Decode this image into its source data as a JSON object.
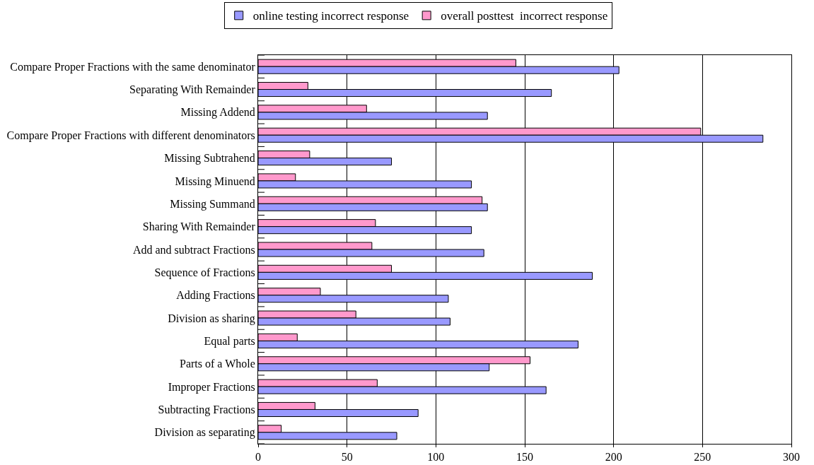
{
  "chart_data": {
    "type": "bar",
    "orientation": "horizontal",
    "categories": [
      "Compare Proper Fractions with the same denominator",
      "Separating With Remainder",
      "Missing Addend",
      "Compare Proper Fractions with different denominators",
      "Missing Subtrahend",
      "Missing Minuend",
      "Missing Summand",
      "Sharing With Remainder",
      "Add and subtract Fractions",
      "Sequence of Fractions",
      "Adding Fractions",
      "Division as sharing",
      "Equal parts",
      "Parts of a Whole",
      "Improper Fractions",
      "Subtracting Fractions",
      "Division as separating"
    ],
    "series": [
      {
        "name": "online testing incorrect response",
        "color": "#9999ff",
        "values": [
          203,
          165,
          129,
          284,
          75,
          120,
          129,
          120,
          127,
          188,
          107,
          108,
          180,
          130,
          162,
          90,
          78
        ]
      },
      {
        "name": "overall posttest  incorrect response",
        "color": "#ff99cc",
        "values": [
          145,
          28,
          61,
          249,
          29,
          21,
          126,
          66,
          64,
          75,
          35,
          55,
          22,
          153,
          67,
          32,
          13
        ]
      }
    ],
    "xlim": [
      0,
      300
    ],
    "xticks": [
      0,
      50,
      100,
      150,
      200,
      250,
      300
    ],
    "grid": "x",
    "legend": "top"
  }
}
